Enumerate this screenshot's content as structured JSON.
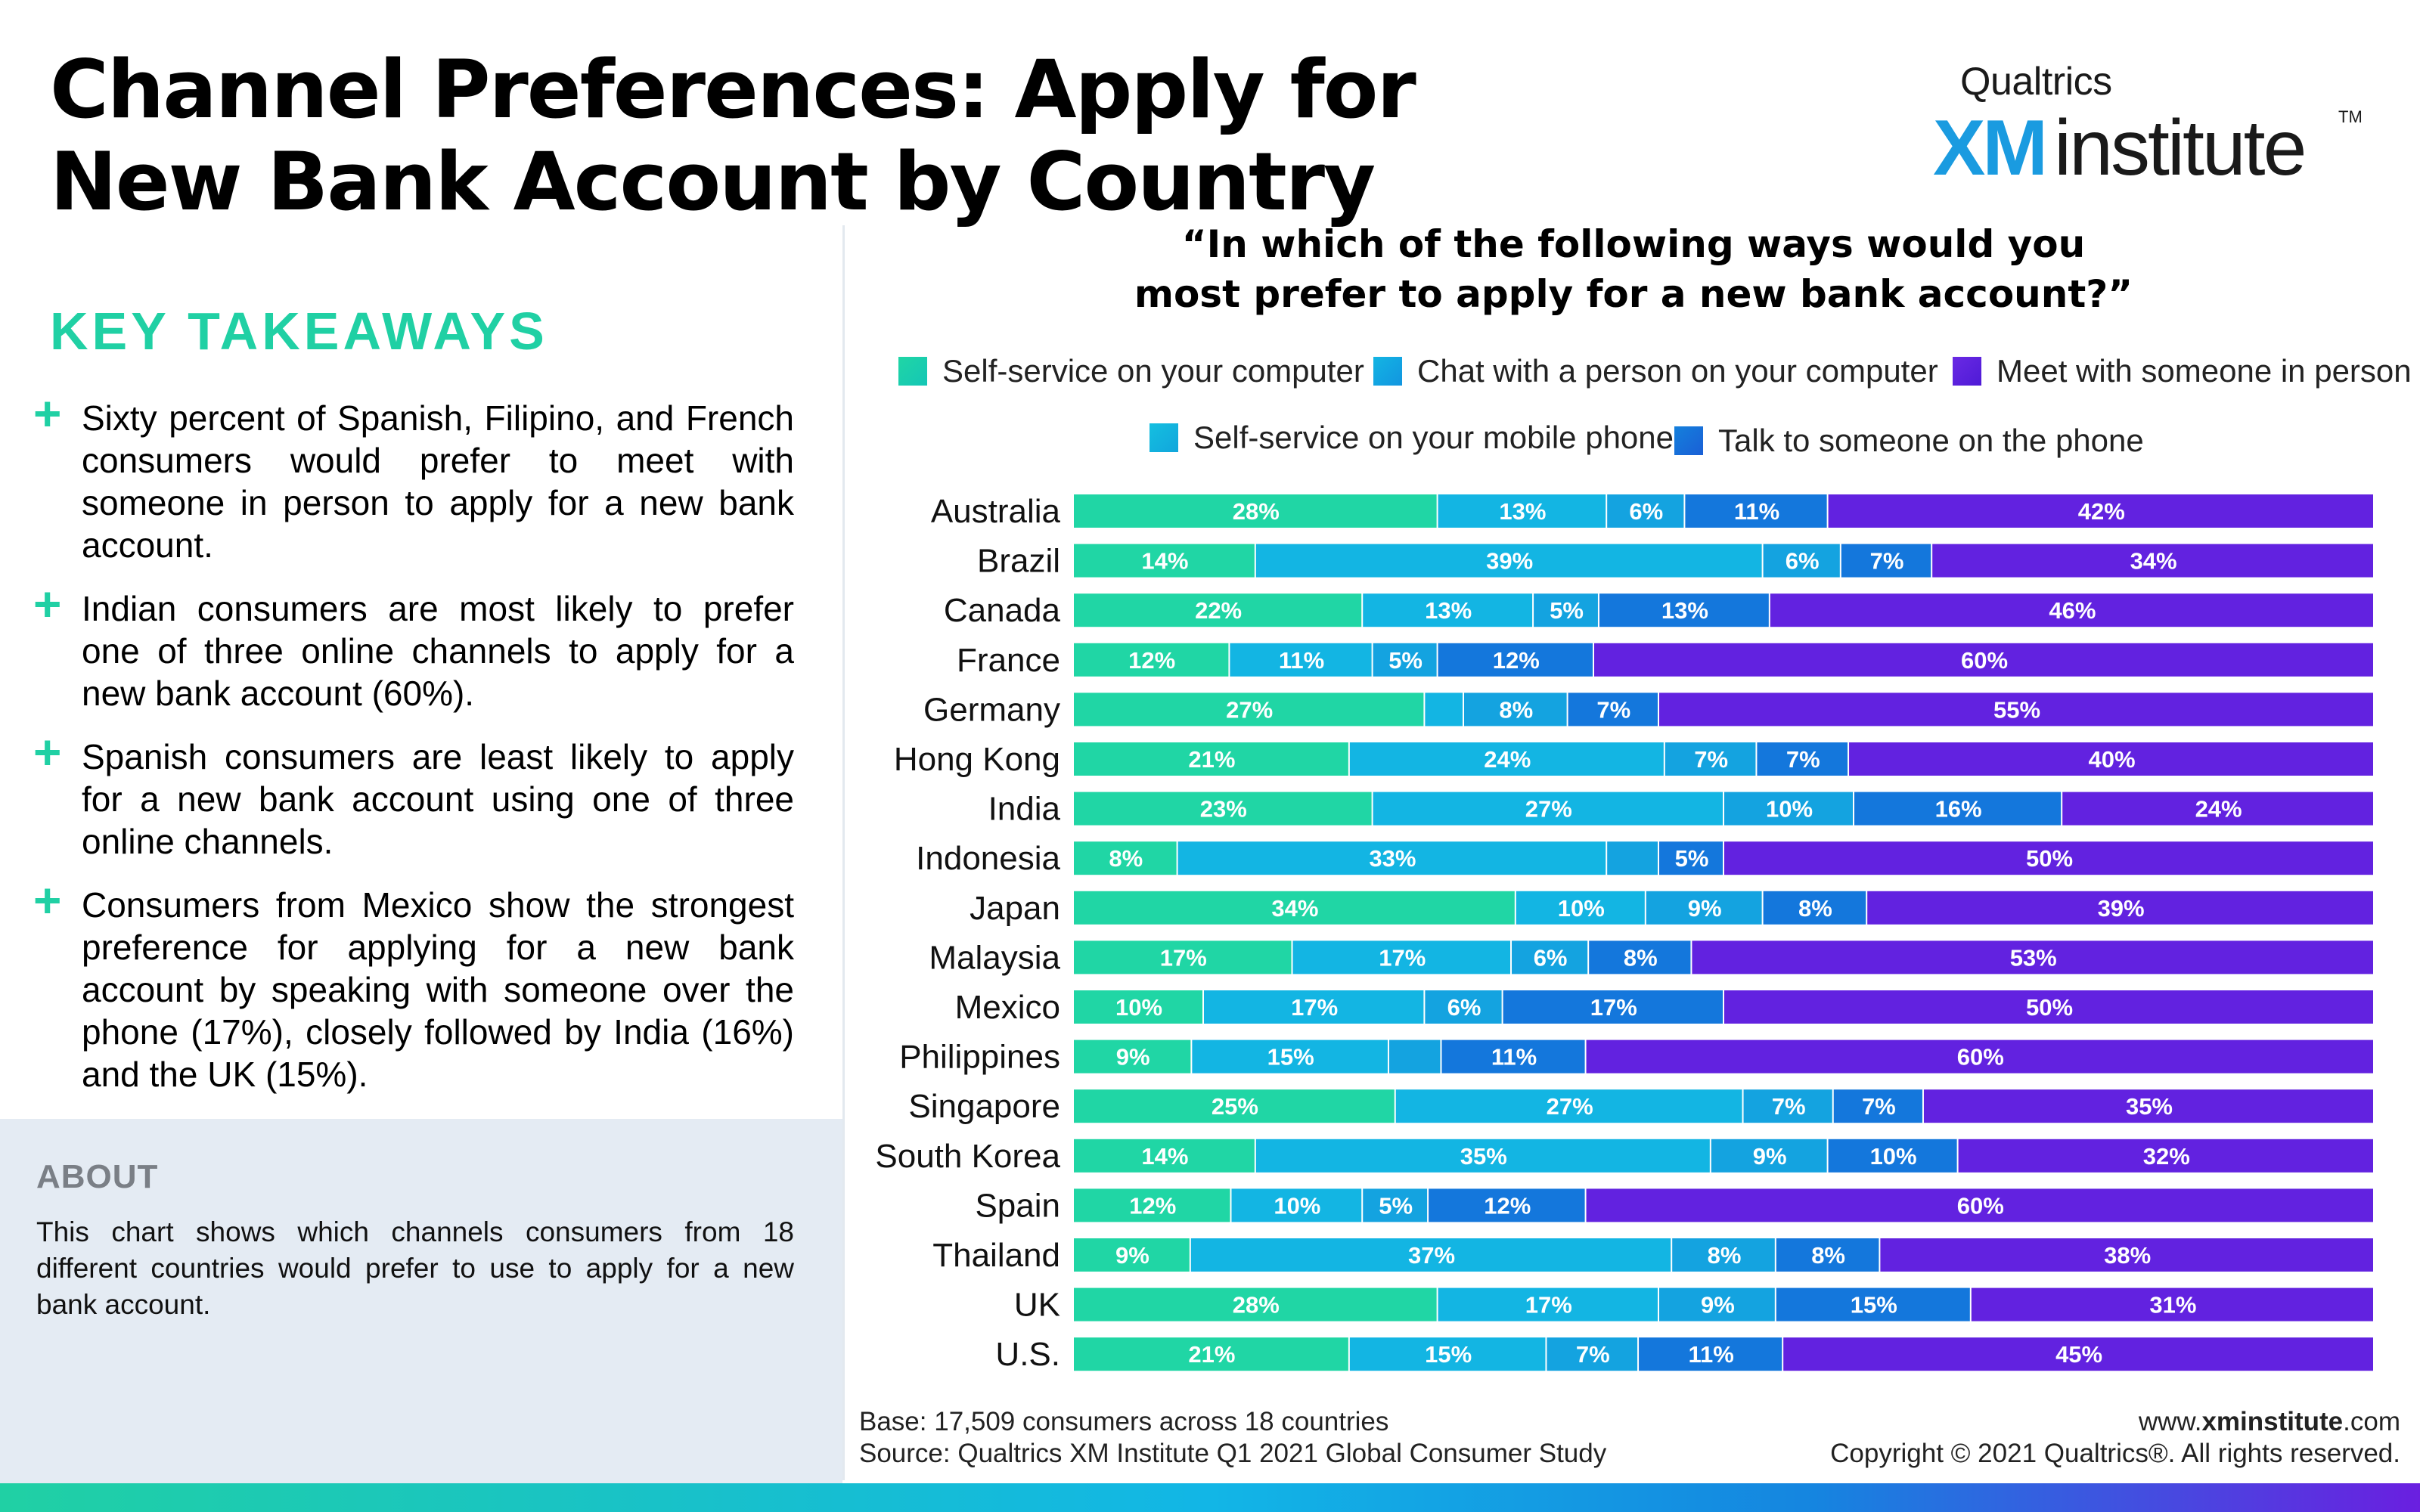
{
  "title": "Channel Preferences: Apply for New Bank Account by Country",
  "logo": {
    "brand": "Qualtrics",
    "xm": "XM",
    "institute": "institute",
    "tm": "TM"
  },
  "key_takeaways": {
    "heading": "KEY TAKEAWAYS",
    "items": [
      "Sixty percent of Spanish, Filipino, and French consumers would prefer to meet with someone in person to apply for a new bank account.",
      "Indian consumers are most likely to prefer one of three online channels to apply for a new bank account (60%).",
      "Spanish consumers are least likely to apply for a new bank account using one of three online channels.",
      "Consumers from Mexico show the strongest preference for applying for a new bank account by speaking with someone over the phone (17%), closely followed by India (16%) and the UK (15%)."
    ]
  },
  "about": {
    "heading": "ABOUT",
    "text": "This chart shows which channels consumers from 18 different countries would prefer to use to apply for a new bank account."
  },
  "footer": {
    "base": "Base: 17,509 consumers across 18 countries",
    "source": "Source: Qualtrics XM Institute Q1 2021 Global Consumer Study",
    "site_prefix": "www.",
    "site_bold": "xminstitute",
    "site_suffix": ".com",
    "copyright": "Copyright © 2021 Qualtrics®. All rights reserved."
  },
  "chart_data": {
    "type": "bar",
    "orientation": "horizontal",
    "stacked": true,
    "normalized": true,
    "title": "“In which of the following ways would you most prefer to apply for a new bank account?”",
    "title_lines": [
      "“In which of the following ways would you",
      "most prefer to apply for a new bank account?”"
    ],
    "categories": [
      "Australia",
      "Brazil",
      "Canada",
      "France",
      "Germany",
      "Hong Kong",
      "India",
      "Indonesia",
      "Japan",
      "Malaysia",
      "Mexico",
      "Philippines",
      "Singapore",
      "South Korea",
      "Spain",
      "Thailand",
      "UK",
      "U.S."
    ],
    "series": [
      {
        "name": "Self-service on your computer",
        "color": "#20d6a5",
        "values": [
          28,
          14,
          22,
          12,
          27,
          21,
          23,
          8,
          34,
          17,
          10,
          9,
          25,
          14,
          12,
          9,
          28,
          21
        ],
        "labels": [
          "28%",
          "14%",
          "22%",
          "12%",
          "27%",
          "21%",
          "23%",
          "8%",
          "34%",
          "17%",
          "10%",
          "9%",
          "25%",
          "14%",
          "12%",
          "9%",
          "28%",
          "21%"
        ]
      },
      {
        "name": "Chat with a person on your computer",
        "color": "#13b5e3",
        "values": [
          13,
          39,
          13,
          11,
          3,
          24,
          27,
          33,
          10,
          17,
          17,
          15,
          27,
          35,
          10,
          37,
          17,
          15
        ],
        "labels": [
          "13%",
          "39%",
          "13%",
          "11%",
          "",
          "24%",
          "27%",
          "33%",
          "10%",
          "17%",
          "17%",
          "15%",
          "27%",
          "35%",
          "10%",
          "37%",
          "17%",
          "15%"
        ]
      },
      {
        "name": "Self-service on your mobile phone",
        "color": "#14a3e0",
        "values": [
          6,
          6,
          5,
          5,
          8,
          7,
          10,
          4,
          9,
          6,
          6,
          4,
          7,
          9,
          5,
          8,
          9,
          7
        ],
        "labels": [
          "6%",
          "6%",
          "5%",
          "5%",
          "8%",
          "7%",
          "10%",
          "",
          "9%",
          "6%",
          "6%",
          "",
          "7%",
          "9%",
          "5%",
          "8%",
          "9%",
          "7%"
        ]
      },
      {
        "name": "Talk to someone on the phone",
        "color": "#1477dc",
        "values": [
          11,
          7,
          13,
          12,
          7,
          7,
          16,
          5,
          8,
          8,
          17,
          11,
          7,
          10,
          12,
          8,
          15,
          11
        ],
        "labels": [
          "11%",
          "7%",
          "13%",
          "12%",
          "7%",
          "7%",
          "16%",
          "5%",
          "8%",
          "8%",
          "17%",
          "11%",
          "7%",
          "10%",
          "12%",
          "8%",
          "15%",
          "11%"
        ]
      },
      {
        "name": "Meet with someone in person",
        "color": "#6222e0",
        "values": [
          42,
          34,
          46,
          60,
          55,
          40,
          24,
          50,
          39,
          53,
          50,
          60,
          35,
          32,
          60,
          38,
          31,
          45
        ],
        "labels": [
          "42%",
          "34%",
          "46%",
          "60%",
          "55%",
          "40%",
          "24%",
          "50%",
          "39%",
          "53%",
          "50%",
          "60%",
          "35%",
          "32%",
          "60%",
          "38%",
          "31%",
          "45%"
        ]
      }
    ],
    "legend": {
      "placement": "top",
      "row1": [
        "Self-service on your computer",
        "Chat with a person on your computer",
        "Meet with someone in person"
      ],
      "row2": [
        "Self-service on your mobile phone",
        "Talk to someone on the phone"
      ]
    },
    "xlim": [
      0,
      100
    ],
    "grid": false
  }
}
